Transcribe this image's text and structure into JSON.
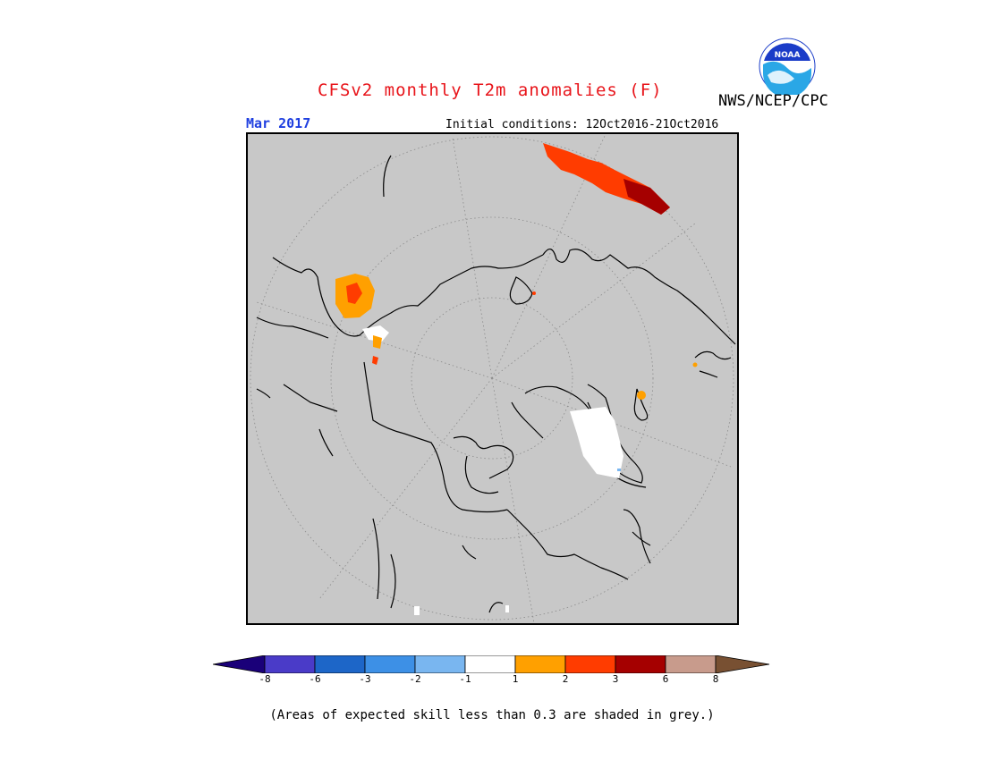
{
  "header": {
    "title": "CFSv2 monthly T2m anomalies (F)",
    "agency": "NWS/NCEP/CPC",
    "month": "Mar 2017",
    "initial_conditions": "Initial conditions: 12Oct2016-21Oct2016",
    "logo_text": "NOAA"
  },
  "legend": {
    "ticks": [
      "-8",
      "-6",
      "-3",
      "-2",
      "-1",
      "1",
      "2",
      "3",
      "6",
      "8"
    ],
    "colors": [
      "#1a0079",
      "#4a3bc8",
      "#1d66c8",
      "#3d90e6",
      "#79b6f0",
      "#ffffff",
      "#ffa000",
      "#ff3c00",
      "#a50000",
      "#c89b8c",
      "#785032"
    ]
  },
  "footnote": "(Areas of expected skill less than 0.3 are shaded in grey.)",
  "map": {
    "background_color": "#c8c8c8",
    "projection": "north polar stereographic"
  }
}
